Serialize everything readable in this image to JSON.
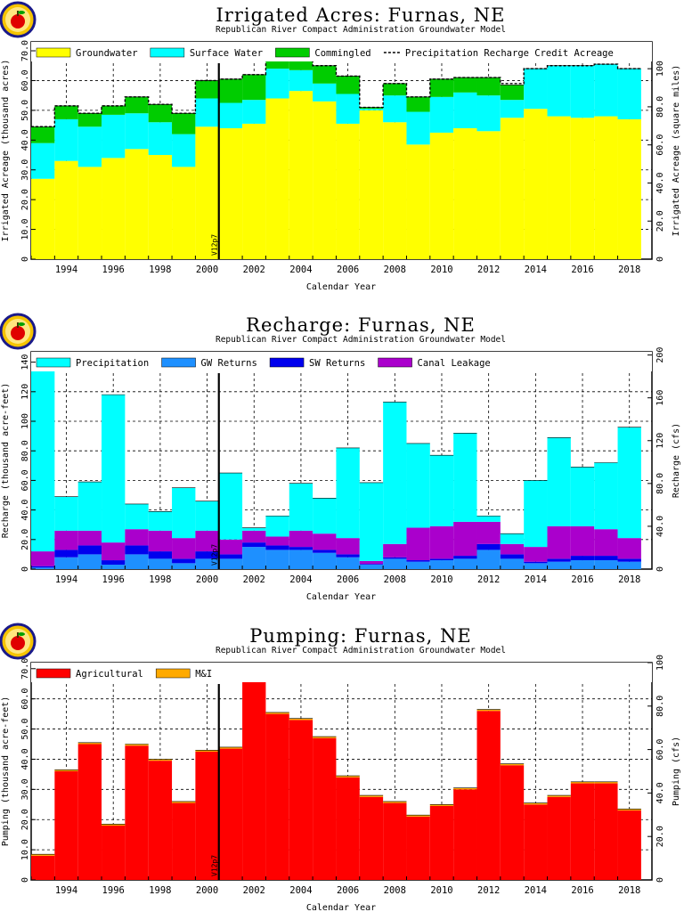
{
  "charts": [
    {
      "title": "Irrigated Acres: Furnas, NE",
      "subtitle": "Republican River Compact Administration Groundwater Model",
      "xlabel": "Calendar Year",
      "ylabel_left": "Irrigated Acreage (thousand acres)",
      "ylabel_right": "Irrigated Acreage (square miles)",
      "marker_label": "V12p7"
    },
    {
      "title": "Recharge: Furnas, NE",
      "subtitle": "Republican River Compact Administration Groundwater Model",
      "xlabel": "Calendar Year",
      "ylabel_left": "Recharge (thousand acre-feet)",
      "ylabel_right": "Recharge (cfs)",
      "marker_label": "V12p7"
    },
    {
      "title": "Pumping: Furnas, NE",
      "subtitle": "Republican River Compact Administration Groundwater Model",
      "xlabel": "Calendar Year",
      "ylabel_left": "Pumping (thousand acre-feet)",
      "ylabel_right": "Pumping (cfs)",
      "marker_label": "V12p7"
    }
  ],
  "chart_data": [
    {
      "type": "bar",
      "stacked": true,
      "title": "Irrigated Acres: Furnas, NE",
      "subtitle": "Republican River Compact Administration Groundwater Model",
      "xlabel": "Calendar Year",
      "ylabel": "Irrigated Acreage (thousand acres)",
      "y2label": "Irrigated Acreage (square miles)",
      "categories": [
        1993,
        1994,
        1995,
        1996,
        1997,
        1998,
        1999,
        2000,
        2001,
        2002,
        2003,
        2004,
        2005,
        2006,
        2007,
        2008,
        2009,
        2010,
        2011,
        2012,
        2013,
        2014,
        2015,
        2016,
        2017,
        2018
      ],
      "x_tick_labels": [
        "1994",
        "1996",
        "1998",
        "2000",
        "2002",
        "2004",
        "2006",
        "2008",
        "2010",
        "2012",
        "2014",
        "2016",
        "2018"
      ],
      "ylim": [
        0,
        73
      ],
      "y_ticks": [
        "0",
        "10.0",
        "20.0",
        "30.0",
        "40.0",
        "50.0",
        "60.0",
        "70.0"
      ],
      "y2lim": [
        0,
        114.1
      ],
      "y2_ticks": [
        "0",
        "20.0",
        "40.0",
        "60.0",
        "80.0",
        "100"
      ],
      "legend_position": "top",
      "grid": true,
      "marker_year": 2000.5,
      "series": [
        {
          "name": "Groundwater",
          "color": "#ffff00",
          "values": [
            27,
            33,
            31,
            34,
            37,
            35,
            31,
            44.5,
            44,
            45.5,
            54,
            56.5,
            53,
            45.5,
            50,
            46,
            38.5,
            42.5,
            44,
            43,
            47.5,
            50.5,
            48,
            47.5,
            48,
            47
          ]
        },
        {
          "name": "Surface Water",
          "color": "#00ffff",
          "values": [
            12,
            14,
            13.5,
            14.5,
            12,
            11,
            11,
            9.5,
            8.5,
            8,
            10,
            7,
            6,
            10,
            0.5,
            9,
            11,
            12,
            12,
            12,
            6,
            13.5,
            17,
            17.5,
            17.5,
            17
          ]
        },
        {
          "name": "Commingled",
          "color": "#00cc00",
          "values": [
            5.5,
            4.5,
            4.5,
            3,
            5.5,
            6,
            7,
            6,
            8,
            8.5,
            4,
            6.5,
            6,
            6,
            0.5,
            4,
            5,
            6,
            5,
            6,
            5,
            0,
            0,
            0,
            0,
            0
          ]
        }
      ],
      "overlay": {
        "name": "Precipitation Recharge Credit Acreage",
        "style": "dashed",
        "values": [
          44.5,
          51.5,
          49,
          51.5,
          54.5,
          52,
          49,
          60,
          60.5,
          62,
          68,
          70,
          65,
          61.5,
          51,
          59,
          54.5,
          60.5,
          61,
          61,
          59,
          64,
          65,
          65,
          65.5,
          64
        ]
      }
    },
    {
      "type": "bar",
      "stacked": true,
      "title": "Recharge: Furnas, NE",
      "subtitle": "Republican River Compact Administration Groundwater Model",
      "xlabel": "Calendar Year",
      "ylabel": "Recharge (thousand acre-feet)",
      "y2label": "Recharge (cfs)",
      "categories": [
        1993,
        1994,
        1995,
        1996,
        1997,
        1998,
        1999,
        2000,
        2001,
        2002,
        2003,
        2004,
        2005,
        2006,
        2007,
        2008,
        2009,
        2010,
        2011,
        2012,
        2013,
        2014,
        2015,
        2016,
        2017,
        2018
      ],
      "x_tick_labels": [
        "1994",
        "1996",
        "1998",
        "2000",
        "2002",
        "2004",
        "2006",
        "2008",
        "2010",
        "2012",
        "2014",
        "2016",
        "2018"
      ],
      "ylim": [
        0,
        147
      ],
      "y_ticks": [
        "0",
        "20.0",
        "40.0",
        "60.0",
        "80.0",
        "100",
        "120",
        "140"
      ],
      "y2lim": [
        0,
        203
      ],
      "y2_ticks": [
        "0",
        "40.0",
        "80.0",
        "120",
        "160",
        "200"
      ],
      "legend_position": "top",
      "grid": true,
      "marker_year": 2000.5,
      "series": [
        {
          "name": "GW Returns",
          "color": "#1e90ff",
          "values": [
            1,
            8,
            10,
            3,
            10,
            7,
            4,
            7,
            7,
            15,
            13,
            13,
            11,
            8,
            3,
            7,
            5,
            6,
            7,
            13,
            7,
            4,
            5,
            6,
            6,
            5
          ]
        },
        {
          "name": "SW Returns",
          "color": "#0000ee",
          "values": [
            1,
            5,
            6,
            3,
            6,
            5,
            3,
            5,
            3,
            3,
            3,
            2,
            2,
            2,
            0.5,
            1,
            1,
            1,
            2,
            4,
            3,
            1,
            2,
            3,
            3,
            2
          ]
        },
        {
          "name": "Canal Leakage",
          "color": "#aa00cc",
          "values": [
            10,
            13,
            10,
            12,
            11,
            14,
            14,
            14,
            10,
            8,
            6,
            11,
            11,
            11,
            2,
            9,
            22,
            22,
            23,
            15,
            7,
            10,
            22,
            20,
            18,
            14
          ]
        },
        {
          "name": "Precipitation",
          "color": "#00ffff",
          "values": [
            133,
            23,
            33,
            100,
            17,
            13,
            34,
            20,
            45,
            2,
            14,
            32,
            24,
            61,
            53,
            96,
            57,
            48,
            60,
            4,
            7,
            45,
            60,
            40,
            45,
            75
          ]
        }
      ]
    },
    {
      "type": "bar",
      "stacked": true,
      "title": "Pumping: Furnas, NE",
      "subtitle": "Republican River Compact Administration Groundwater Model",
      "xlabel": "Calendar Year",
      "ylabel": "Pumping (thousand acre-feet)",
      "y2label": "Pumping (cfs)",
      "categories": [
        1993,
        1994,
        1995,
        1996,
        1997,
        1998,
        1999,
        2000,
        2001,
        2002,
        2003,
        2004,
        2005,
        2006,
        2007,
        2008,
        2009,
        2010,
        2011,
        2012,
        2013,
        2014,
        2015,
        2016,
        2017,
        2018
      ],
      "x_tick_labels": [
        "1994",
        "1996",
        "1998",
        "2000",
        "2002",
        "2004",
        "2006",
        "2008",
        "2010",
        "2012",
        "2014",
        "2016",
        "2018"
      ],
      "ylim": [
        0,
        72
      ],
      "y_ticks": [
        "0",
        "10.0",
        "20.0",
        "30.0",
        "40.0",
        "50.0",
        "60.0",
        "70.0"
      ],
      "y2lim": [
        0,
        100
      ],
      "y2_ticks": [
        "0",
        "20.0",
        "40.0",
        "60.0",
        "80.0",
        "100"
      ],
      "legend_position": "top",
      "grid": true,
      "marker_year": 2000.5,
      "series": [
        {
          "name": "Agricultural",
          "color": "#ff0000",
          "values": [
            8,
            36,
            45,
            18,
            44.5,
            39.5,
            25.5,
            42.5,
            43.5,
            71.5,
            55,
            53,
            47,
            34,
            27.5,
            25.5,
            21,
            24.5,
            30,
            56,
            38,
            25,
            27.5,
            32,
            32,
            23
          ]
        },
        {
          "name": "M&I",
          "color": "#ffaa00",
          "values": [
            0.5,
            0.5,
            0.5,
            0.5,
            0.5,
            0.5,
            0.5,
            0.5,
            0.5,
            0.5,
            0.5,
            0.5,
            0.5,
            0.5,
            0.5,
            0.5,
            0.5,
            0.5,
            0.5,
            0.5,
            0.5,
            0.5,
            0.5,
            0.5,
            0.5,
            0.5
          ]
        }
      ]
    }
  ]
}
